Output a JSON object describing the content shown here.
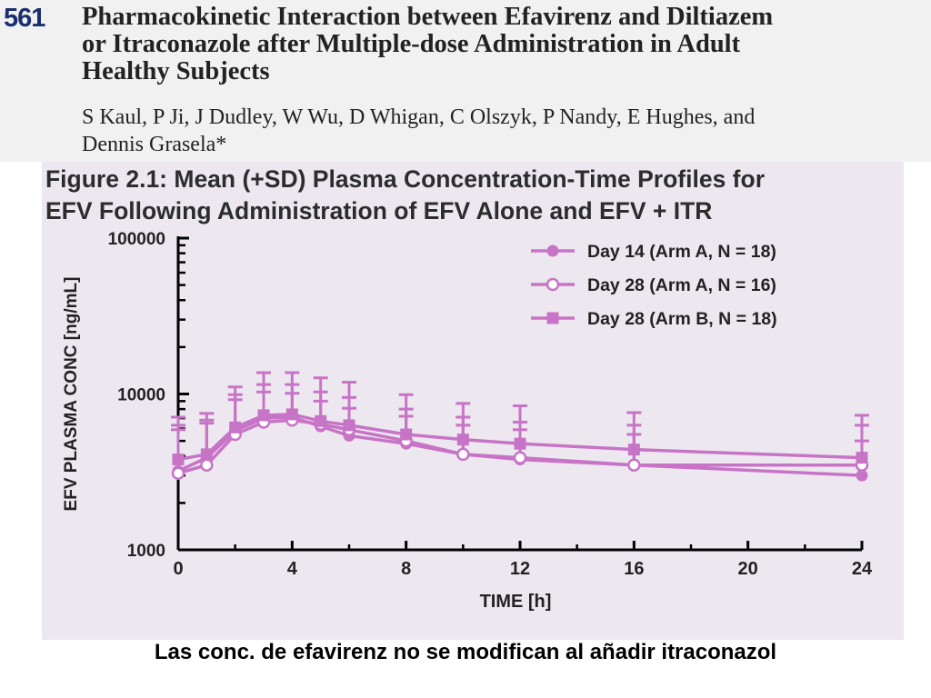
{
  "header": {
    "abstract_number": "561",
    "title_lines": [
      "Pharmacokinetic Interaction between Efavirenz and Diltiazem",
      "or Itraconazole after Multiple-dose Administration in Adult",
      "Healthy Subjects"
    ],
    "authors_lines": [
      "S Kaul, P Ji, J Dudley, W Wu, D Whigan, C Olszyk, P Nandy, E Hughes, and",
      "Dennis Grasela*"
    ]
  },
  "figure": {
    "title_lines": [
      "Figure 2.1: Mean (+SD) Plasma Concentration-Time Profiles for",
      "EFV Following Administration of EFV Alone and EFV + ITR"
    ]
  },
  "chart_data": {
    "type": "line",
    "title": "Figure 2.1: Mean (+SD) Plasma Concentration-Time Profiles for EFV Following Administration of EFV Alone and EFV + ITR",
    "xlabel": "TIME [h]",
    "ylabel": "EFV PLASMA CONC [ng/mL]",
    "xlim": [
      0,
      24
    ],
    "ylim": [
      1000,
      100000
    ],
    "yscale": "log",
    "xticks": [
      0,
      4,
      8,
      12,
      16,
      20,
      24
    ],
    "yticks": [
      1000,
      10000,
      100000
    ],
    "ytick_labels": [
      "1000",
      "10000",
      "100000"
    ],
    "grid": false,
    "legend_position": "top-right",
    "series": [
      {
        "name": "Day 14 (Arm A, N = 18)",
        "marker": "filled-circle",
        "x": [
          0,
          1,
          2,
          3,
          4,
          5,
          6,
          8,
          10,
          12,
          16,
          24
        ],
        "y": [
          3200,
          3900,
          5800,
          7000,
          7100,
          6200,
          5400,
          4800,
          4100,
          3800,
          3500,
          3000
        ],
        "sd_upper": [
          5900,
          6500,
          9200,
          10300,
          10100,
          9000,
          8100,
          7200,
          6300,
          5900,
          5500,
          5000
        ]
      },
      {
        "name": "Day 28 (Arm A, N = 16)",
        "marker": "open-circle",
        "x": [
          0,
          1,
          2,
          3,
          4,
          5,
          6,
          8,
          10,
          12,
          16,
          24
        ],
        "y": [
          3100,
          3500,
          5500,
          6600,
          6800,
          6400,
          5900,
          5000,
          4100,
          3900,
          3500,
          3500
        ],
        "sd_upper": [
          6300,
          6800,
          9900,
          11500,
          11500,
          10300,
          9500,
          8000,
          7100,
          6600,
          6300,
          6300
        ]
      },
      {
        "name": "Day 28 (Arm B, N = 18)",
        "marker": "filled-square",
        "x": [
          0,
          1,
          2,
          3,
          4,
          5,
          6,
          8,
          10,
          12,
          16,
          24
        ],
        "y": [
          3800,
          4100,
          6100,
          7300,
          7400,
          6700,
          6300,
          5500,
          5100,
          4800,
          4400,
          3900
        ],
        "sd_upper": [
          7100,
          7500,
          11100,
          13700,
          13700,
          12700,
          11900,
          9900,
          8700,
          8400,
          7600,
          7300
        ]
      }
    ]
  },
  "colors": {
    "series": "#c774c6",
    "axis": "#000000",
    "panel_bg": "#ede8f0",
    "header_bg": "#f1f1f1",
    "abstract_number": "#1b2f6e"
  },
  "caption": "Las conc. de efavirenz no se modifican al añadir itraconazol"
}
